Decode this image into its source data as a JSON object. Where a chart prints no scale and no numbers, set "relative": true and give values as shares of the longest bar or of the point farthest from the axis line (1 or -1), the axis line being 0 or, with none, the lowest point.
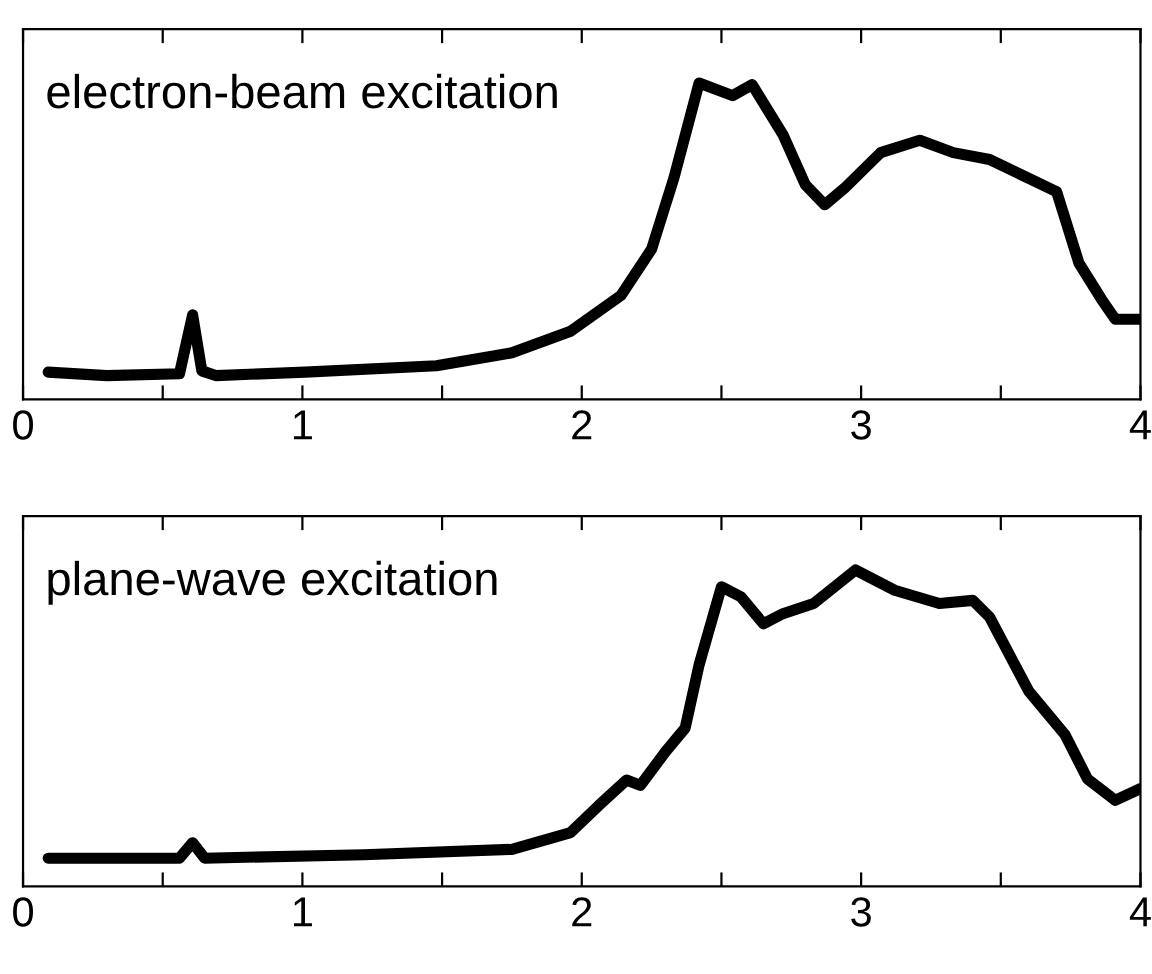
{
  "chart_data": [
    {
      "type": "line",
      "relative": true,
      "annotations": [
        "electron-beam excitation"
      ],
      "tick_labels": "x",
      "grid": false,
      "legend": false,
      "line_style": "solid",
      "xlim": [
        0,
        4
      ],
      "xticks": [
        0,
        {
          "value": 0.5,
          "label": null
        },
        1,
        {
          "value": 1.5,
          "label": null
        },
        2,
        {
          "value": 2.5,
          "label": null
        },
        3,
        {
          "value": 3.5,
          "label": null
        },
        4
      ],
      "series": [
        {
          "color": "#000000",
          "x": [
            0.09,
            0.3,
            0.56,
            0.607,
            0.64,
            0.69,
            1.01,
            1.48,
            1.75,
            1.96,
            2.14,
            2.25,
            2.33,
            2.42,
            2.54,
            2.61,
            2.72,
            2.8,
            2.87,
            2.94,
            3.07,
            3.21,
            3.33,
            3.46,
            3.62,
            3.7,
            3.78,
            3.86,
            3.91,
            4.0
          ],
          "values": [
            0.086,
            0.075,
            0.081,
            0.267,
            0.09,
            0.075,
            0.086,
            0.106,
            0.147,
            0.215,
            0.328,
            0.475,
            0.7,
            1.0,
            0.96,
            0.995,
            0.837,
            0.679,
            0.615,
            0.667,
            0.78,
            0.819,
            0.78,
            0.758,
            0.69,
            0.656,
            0.43,
            0.317,
            0.253,
            0.253
          ]
        }
      ]
    },
    {
      "type": "line",
      "relative": true,
      "annotations": [
        "plane-wave excitation"
      ],
      "tick_labels": "x",
      "grid": false,
      "legend": false,
      "line_style": "solid",
      "xlim": [
        0,
        4
      ],
      "xticks": [
        0,
        {
          "value": 0.5,
          "label": null
        },
        1,
        {
          "value": 1.5,
          "label": null
        },
        2,
        {
          "value": 2.5,
          "label": null
        },
        3,
        {
          "value": 3.5,
          "label": null
        },
        4
      ],
      "series": [
        {
          "color": "#000000",
          "x": [
            0.09,
            0.56,
            0.607,
            0.65,
            1.22,
            1.75,
            1.96,
            2.06,
            2.16,
            2.21,
            2.3,
            2.37,
            2.42,
            2.5,
            2.57,
            2.65,
            2.72,
            2.83,
            2.98,
            3.12,
            3.28,
            3.4,
            3.46,
            3.6,
            3.73,
            3.81,
            3.91,
            4.0
          ],
          "values": [
            0.089,
            0.089,
            0.138,
            0.089,
            0.1,
            0.117,
            0.17,
            0.255,
            0.336,
            0.319,
            0.426,
            0.5,
            0.7,
            0.947,
            0.915,
            0.83,
            0.862,
            0.894,
            1.0,
            0.936,
            0.894,
            0.904,
            0.851,
            0.617,
            0.479,
            0.34,
            0.272,
            0.309
          ]
        }
      ]
    }
  ]
}
